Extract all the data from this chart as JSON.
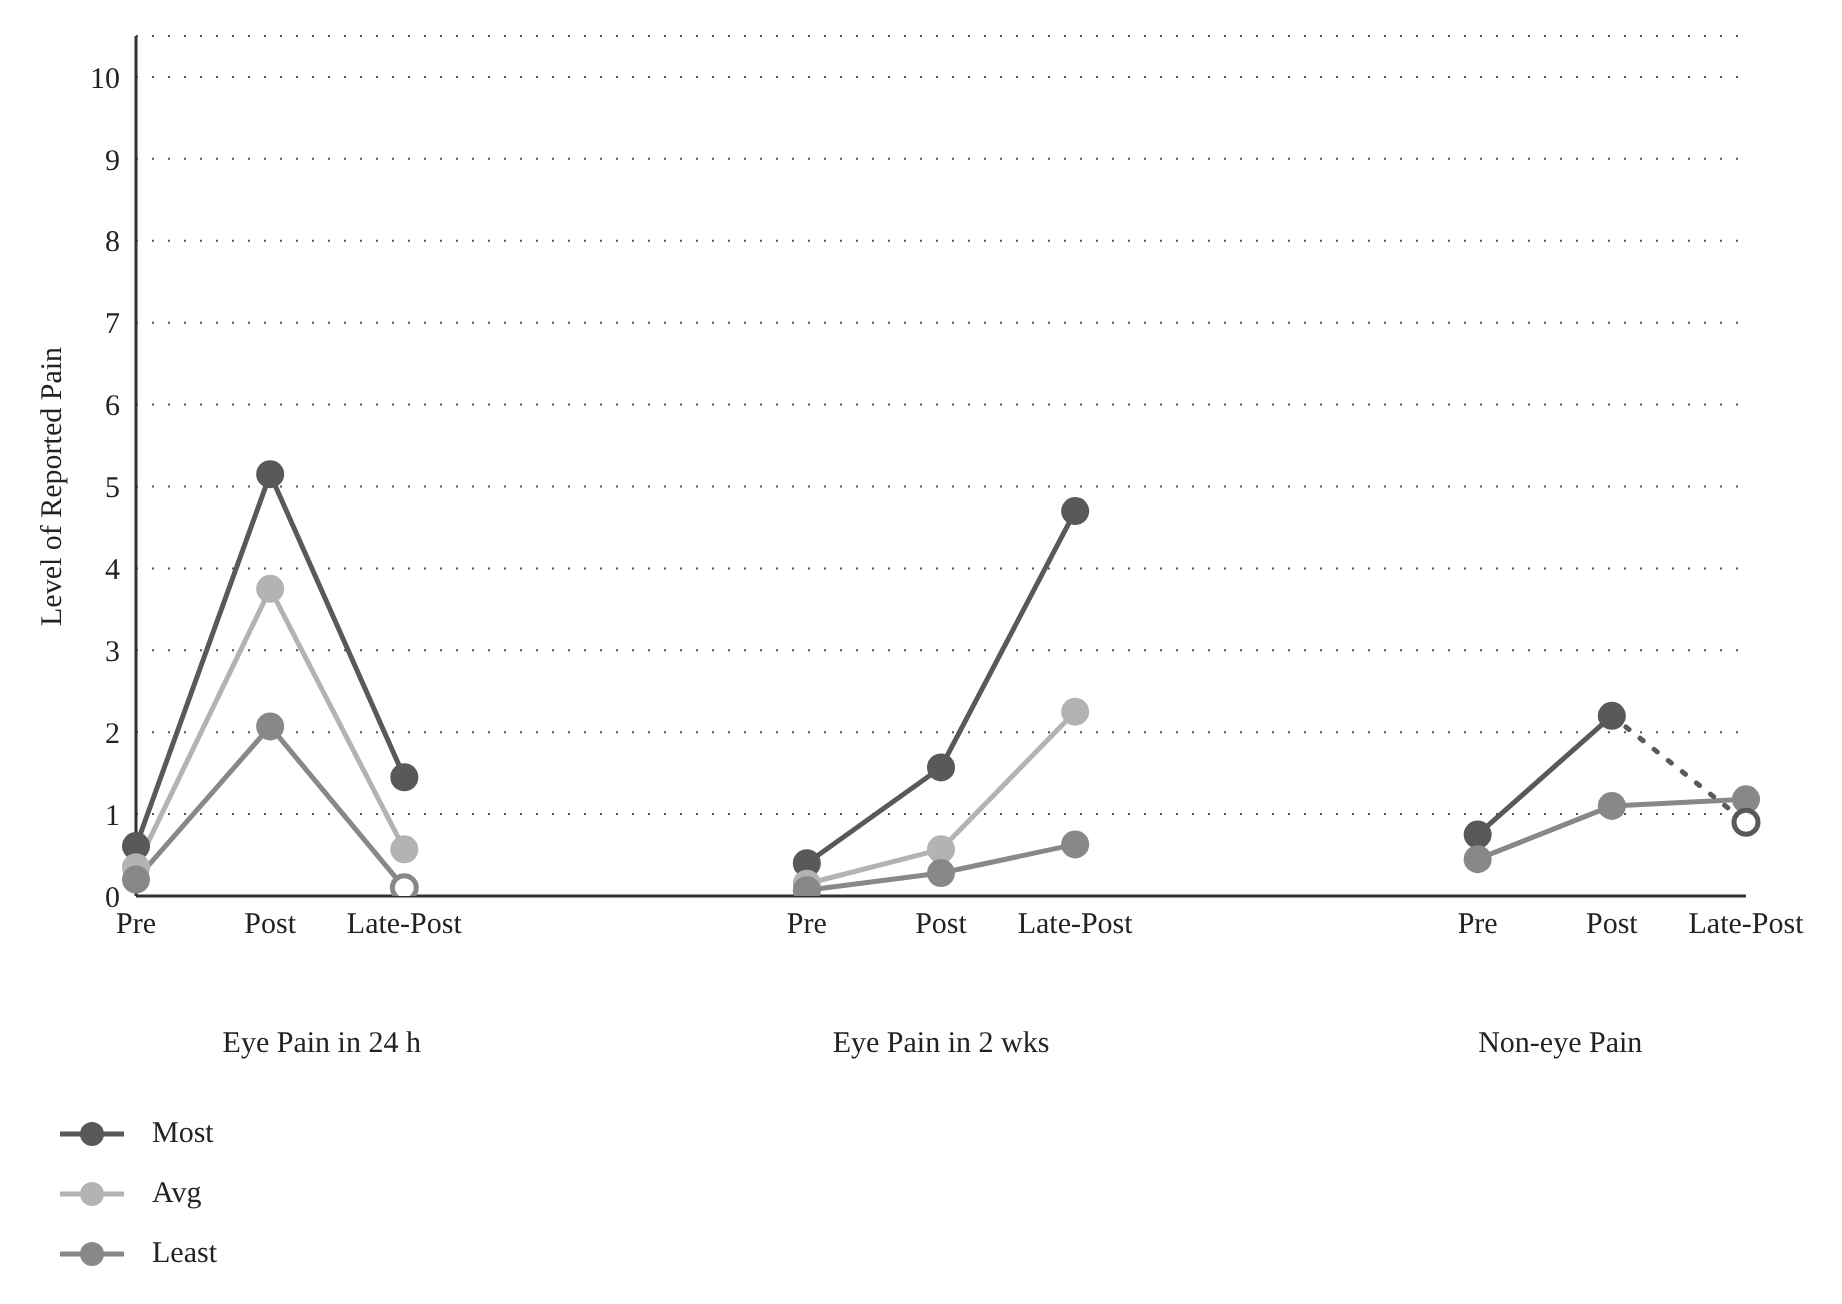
{
  "chart_data": {
    "type": "line",
    "categories": [
      "Pre",
      "Post",
      "Late-Post",
      null,
      null,
      "Pre",
      "Post",
      "Late-Post",
      null,
      null,
      "Pre",
      "Post",
      "Late-Post"
    ],
    "ylabel": "Level of Reported Pain",
    "ylim": [
      0,
      10.5
    ],
    "yticks": [
      0,
      1,
      2,
      3,
      4,
      5,
      6,
      7,
      8,
      9,
      10
    ],
    "grid": "y",
    "legend": "bottom left",
    "marker": "circle",
    "annotations": [
      "Eye Pain in 24 h",
      "Eye Pain in 2 wks",
      "Non-eye Pain"
    ],
    "series": [
      {
        "name": "Most",
        "color": "#595959",
        "values": [
          0.61,
          5.15,
          1.45,
          null,
          null,
          0.4,
          1.57,
          4.7,
          null,
          null,
          0.75,
          2.2,
          null
        ]
      },
      {
        "name": "Avg",
        "color": "#b3b3b3",
        "values": [
          0.35,
          3.75,
          0.57,
          null,
          null,
          0.15,
          0.57,
          2.25,
          null,
          null,
          null,
          null,
          null
        ]
      },
      {
        "name": "Least",
        "color": "#888888",
        "values": [
          0.2,
          2.07,
          null,
          null,
          null,
          0.07,
          0.28,
          0.63,
          null,
          null,
          0.45,
          1.1,
          1.18
        ]
      },
      {
        "color": "#888888",
        "values": [
          null,
          2.07,
          0.1,
          null,
          null,
          null,
          null,
          null,
          null,
          null,
          null,
          null,
          null
        ]
      },
      {
        "color": "#595959",
        "line_style": "dotted",
        "values": [
          null,
          null,
          null,
          null,
          null,
          null,
          null,
          null,
          null,
          null,
          null,
          2.2,
          0.9
        ]
      }
    ]
  }
}
